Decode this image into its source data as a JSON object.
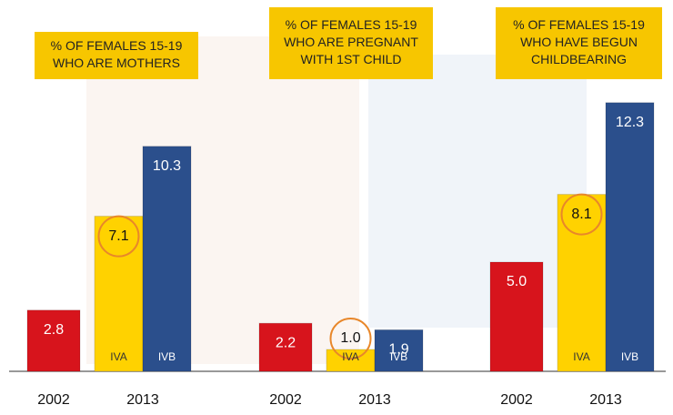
{
  "chart_data": [
    {
      "type": "bar",
      "title": [
        "% OF FEMALES 15-19",
        "WHO ARE MOTHERS"
      ],
      "x_labels": [
        "2002",
        "2013"
      ],
      "bar_labels": [
        null,
        "IVA",
        "IVB"
      ],
      "values": [
        2.8,
        7.1,
        10.3
      ],
      "value_labels": [
        "2.8",
        "7.1",
        "10.3"
      ],
      "colors": [
        "#d7141c",
        "#ffd200",
        "#2b4f8c"
      ],
      "highlight": 1,
      "ylim": [
        0,
        17
      ]
    },
    {
      "type": "bar",
      "title": [
        "% OF FEMALES 15-19",
        "WHO ARE PREGNANT",
        "WITH 1ST CHILD"
      ],
      "x_labels": [
        "2002",
        "2013"
      ],
      "bar_labels": [
        null,
        "IVA",
        "IVB"
      ],
      "values": [
        2.2,
        1.0,
        1.9
      ],
      "value_labels": [
        "2.2",
        "1.0",
        "1.9"
      ],
      "colors": [
        "#d7141c",
        "#ffd200",
        "#2b4f8c"
      ],
      "highlight": 1,
      "ylim": [
        0,
        17
      ]
    },
    {
      "type": "bar",
      "title": [
        "% OF FEMALES 15-19",
        "WHO HAVE BEGUN",
        "CHILDBEARING"
      ],
      "x_labels": [
        "2002",
        "2013"
      ],
      "bar_labels": [
        null,
        "IVA",
        "IVB"
      ],
      "values": [
        5.0,
        8.1,
        12.3
      ],
      "value_labels": [
        "5.0",
        "8.1",
        "12.3"
      ],
      "colors": [
        "#d7141c",
        "#ffd200",
        "#2b4f8c"
      ],
      "highlight": 1,
      "ylim": [
        0,
        17
      ]
    }
  ]
}
